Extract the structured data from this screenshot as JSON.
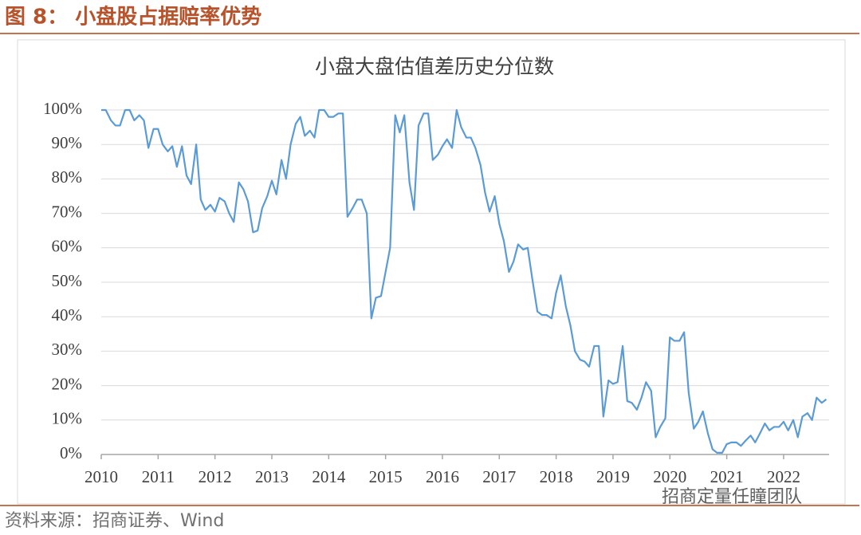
{
  "header": "图 8： 小盘股占据赔率优势",
  "footer": "资料来源：招商证券、Wind",
  "watermark": "招商定量任瞳团队",
  "chart_data": {
    "type": "line",
    "title": "小盘大盘估值差历史分位数",
    "x": [
      2010,
      2010.08,
      2010.17,
      2010.25,
      2010.33,
      2010.42,
      2010.5,
      2010.58,
      2010.67,
      2010.75,
      2010.83,
      2010.92,
      2011,
      2011.08,
      2011.17,
      2011.25,
      2011.33,
      2011.42,
      2011.5,
      2011.58,
      2011.67,
      2011.75,
      2011.83,
      2011.92,
      2012,
      2012.08,
      2012.17,
      2012.25,
      2012.33,
      2012.42,
      2012.5,
      2012.58,
      2012.67,
      2012.75,
      2012.83,
      2012.92,
      2013,
      2013.08,
      2013.17,
      2013.25,
      2013.33,
      2013.42,
      2013.5,
      2013.58,
      2013.67,
      2013.75,
      2013.83,
      2013.92,
      2014,
      2014.08,
      2014.17,
      2014.25,
      2014.33,
      2014.42,
      2014.5,
      2014.58,
      2014.67,
      2014.75,
      2014.83,
      2014.92,
      2015,
      2015.08,
      2015.17,
      2015.25,
      2015.33,
      2015.42,
      2015.5,
      2015.58,
      2015.67,
      2015.75,
      2015.83,
      2015.92,
      2016,
      2016.08,
      2016.17,
      2016.25,
      2016.33,
      2016.42,
      2016.5,
      2016.58,
      2016.67,
      2016.75,
      2016.83,
      2016.92,
      2017,
      2017.08,
      2017.17,
      2017.25,
      2017.33,
      2017.42,
      2017.5,
      2017.58,
      2017.67,
      2017.75,
      2017.83,
      2017.92,
      2018,
      2018.08,
      2018.17,
      2018.25,
      2018.33,
      2018.42,
      2018.5,
      2018.58,
      2018.67,
      2018.75,
      2018.83,
      2018.92,
      2019,
      2019.08,
      2019.17,
      2019.25,
      2019.33,
      2019.42,
      2019.5,
      2019.58,
      2019.67,
      2019.75,
      2019.83,
      2019.92,
      2020,
      2020.08,
      2020.17,
      2020.25,
      2020.33,
      2020.42,
      2020.5,
      2020.58,
      2020.67,
      2020.75,
      2020.83,
      2020.92,
      2021,
      2021.08,
      2021.17,
      2021.25,
      2021.33,
      2021.42,
      2021.5,
      2021.58,
      2021.67,
      2021.75,
      2021.83,
      2021.92,
      2022,
      2022.08,
      2022.17,
      2022.25,
      2022.33,
      2022.42,
      2022.5,
      2022.58,
      2022.67,
      2022.75
    ],
    "series": [
      {
        "name": "小盘大盘估值差历史分位数",
        "color": "#5b9bd5",
        "values": [
          100,
          100,
          97,
          95.5,
          95.5,
          100,
          100,
          97,
          98.5,
          97,
          89,
          94.5,
          94.5,
          90,
          88,
          89.5,
          83.5,
          89.5,
          81,
          78.5,
          90,
          74,
          71,
          72.5,
          70.5,
          74.5,
          73.5,
          70,
          67.5,
          79,
          77,
          73.5,
          64.5,
          65,
          71.5,
          75,
          79.5,
          75.5,
          85.5,
          80,
          90,
          96,
          98,
          92.5,
          94,
          92,
          100,
          100,
          98,
          98,
          99,
          99,
          69,
          71.5,
          74,
          74,
          70,
          39.5,
          45.5,
          46,
          53,
          60,
          98.5,
          93.5,
          98.5,
          79,
          71,
          95.5,
          99,
          99,
          85.5,
          87,
          89.5,
          91.5,
          89,
          100,
          95,
          92,
          92,
          89,
          84,
          76,
          70.5,
          75,
          67,
          62,
          53,
          56,
          61,
          59.5,
          60,
          51,
          41.5,
          40.5,
          40.5,
          39.5,
          47,
          52,
          43,
          37.5,
          30,
          27.5,
          27,
          25.5,
          31.5,
          31.5,
          11,
          21.5,
          20.5,
          21,
          31.5,
          15.5,
          15,
          13,
          16.5,
          21,
          18.5,
          5,
          8,
          10.5,
          34,
          33,
          33,
          35.5,
          18,
          7.5,
          9.5,
          12.5,
          6,
          1.5,
          0.5,
          0.5,
          3,
          3.5,
          3.5,
          2.5,
          4,
          5.5,
          3.5,
          6,
          9,
          7,
          8,
          8,
          9.5,
          7,
          10,
          5,
          11,
          12,
          10,
          16.5,
          15,
          16
        ]
      }
    ],
    "xlim": [
      2010,
      2022.8
    ],
    "xticks": [
      2010,
      2011,
      2012,
      2013,
      2014,
      2015,
      2016,
      2017,
      2018,
      2019,
      2020,
      2021,
      2022
    ],
    "ylim": [
      0,
      100
    ],
    "yticks": [
      {
        "value": 0,
        "label": "0%"
      },
      {
        "value": 10,
        "label": "10%"
      },
      {
        "value": 20,
        "label": "20%"
      },
      {
        "value": 30,
        "label": "30%"
      },
      {
        "value": 40,
        "label": "40%"
      },
      {
        "value": 50,
        "label": "50%"
      },
      {
        "value": 60,
        "label": "60%"
      },
      {
        "value": 70,
        "label": "70%"
      },
      {
        "value": 80,
        "label": "80%"
      },
      {
        "value": 90,
        "label": "90%"
      },
      {
        "value": 100,
        "label": "100%"
      }
    ],
    "grid": true
  }
}
